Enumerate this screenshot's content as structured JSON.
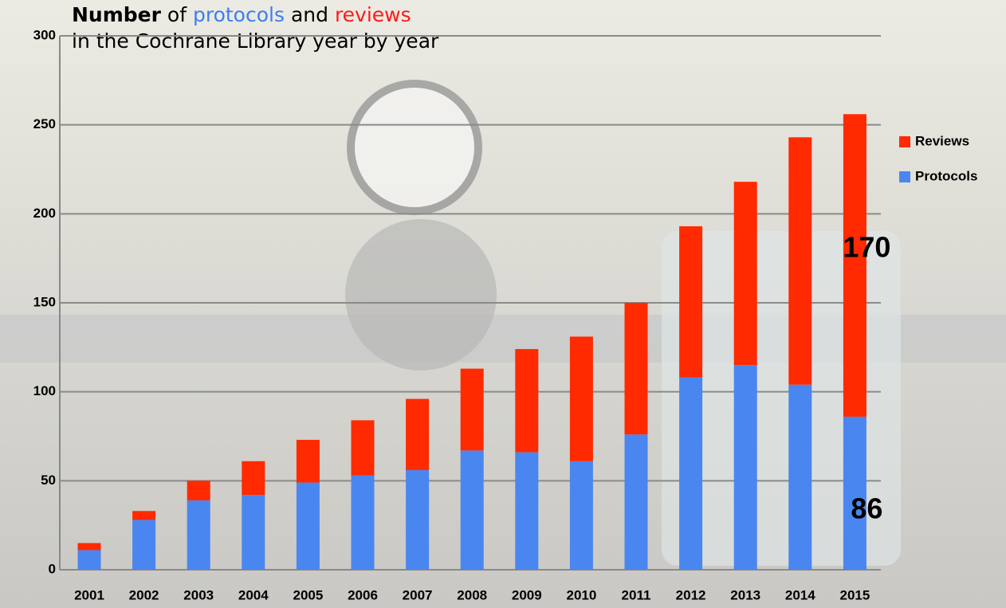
{
  "chart_data": {
    "type": "stacked-bar",
    "title": {
      "line1": [
        "Number",
        "of",
        "protocols",
        "and",
        "reviews"
      ],
      "line2": "in the Cochrane Library year by year"
    },
    "categories": [
      "2001",
      "2002",
      "2003",
      "2004",
      "2005",
      "2006",
      "2007",
      "2008",
      "2009",
      "2010",
      "2011",
      "2012",
      "2013",
      "2014",
      "2015"
    ],
    "series": [
      {
        "name": "Protocols",
        "color": "#4a86f0",
        "values": [
          11,
          28,
          39,
          42,
          49,
          53,
          56,
          67,
          66,
          61,
          76,
          108,
          115,
          104,
          86
        ]
      },
      {
        "name": "Reviews",
        "color": "#ff2a00",
        "values": [
          4,
          5,
          11,
          19,
          24,
          31,
          40,
          46,
          58,
          70,
          74,
          85,
          103,
          139,
          170
        ]
      }
    ],
    "ylim": [
      0,
      300
    ],
    "yticks": [
      0,
      50,
      100,
      150,
      200,
      250,
      300
    ],
    "grid": true,
    "legend": "right"
  }
}
